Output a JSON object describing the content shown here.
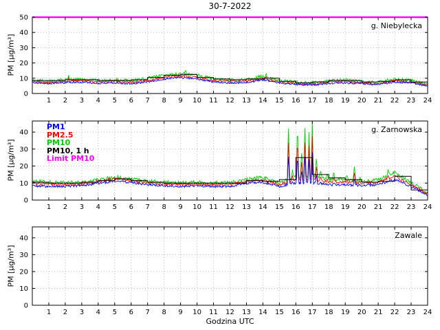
{
  "title": "30-7-2022",
  "xlabel": "Godzina UTC",
  "colors": {
    "pm1": "#0000ff",
    "pm25": "#ff0000",
    "pm10": "#00cc00",
    "pm10_1h": "#000000",
    "limit_pm10": "#ff00ff",
    "grid": "#bbbbbb",
    "frame": "#000000"
  },
  "chart_data": [
    {
      "type": "line",
      "site": "g. Niebylecka",
      "ylabel": "PM [µg/m³]",
      "xlim": [
        0,
        24
      ],
      "ylim": [
        0,
        50
      ],
      "xticks": [
        1,
        2,
        3,
        4,
        5,
        6,
        7,
        8,
        9,
        10,
        11,
        12,
        13,
        14,
        15,
        16,
        17,
        18,
        19,
        20,
        21,
        22,
        23,
        24
      ],
      "yticks": [
        0,
        10,
        20,
        30,
        40,
        50
      ],
      "grid": true,
      "x": [
        0,
        1,
        2,
        3,
        4,
        5,
        6,
        7,
        8,
        9,
        10,
        11,
        12,
        13,
        14,
        15,
        16,
        17,
        18,
        19,
        20,
        21,
        22,
        23,
        24
      ],
      "series": [
        {
          "name": "PM10",
          "color": "#00cc00",
          "noise": 1.0,
          "spike_scale": 1.0,
          "values": [
            9,
            8,
            9,
            9.5,
            8.5,
            9,
            8.5,
            10,
            12,
            13,
            12,
            9.5,
            9,
            9,
            11.5,
            8.5,
            7.5,
            7,
            8.5,
            9,
            8,
            7.5,
            9.5,
            8.5,
            6
          ]
        },
        {
          "name": "PM2.5",
          "color": "#ff0000",
          "noise": 0.7,
          "spike_scale": 0.85,
          "values": [
            8,
            7,
            8,
            8.5,
            7.5,
            8,
            7.5,
            8.5,
            10.5,
            11.5,
            10.5,
            8.5,
            8,
            8,
            10,
            7.5,
            6.5,
            6,
            7.5,
            8,
            7,
            6.5,
            8.5,
            7.5,
            5.5
          ]
        },
        {
          "name": "PM1",
          "color": "#0000ff",
          "noise": 0.6,
          "spike_scale": 0.65,
          "values": [
            7,
            6.5,
            7,
            7.5,
            6.5,
            7,
            6.5,
            7.5,
            9.5,
            10.5,
            9.5,
            7.5,
            7,
            7,
            9,
            7,
            6,
            5.5,
            6.5,
            7,
            6.5,
            6,
            7.5,
            7,
            5
          ]
        }
      ],
      "step_series": {
        "name": "PM10, 1 h",
        "color": "#000000",
        "values": [
          8.5,
          8.5,
          9,
          9,
          8.5,
          8.5,
          9,
          10.5,
          12,
          12.5,
          10.5,
          9.5,
          9,
          9.5,
          10,
          8,
          7,
          7.5,
          8.5,
          8.5,
          7.5,
          8,
          9,
          7.5
        ]
      },
      "limit": {
        "name": "Limit PM10",
        "value": 50,
        "color": "#ff00ff"
      },
      "spikes": [
        {
          "x": 2.2,
          "y": 12
        },
        {
          "x": 9.3,
          "y": 15.5
        },
        {
          "x": 14.2,
          "y": 13
        }
      ]
    },
    {
      "type": "line",
      "site": "g. Zarnowska",
      "ylabel": "PM [µg/m³]",
      "xlim": [
        0,
        24
      ],
      "ylim": [
        0,
        46.5
      ],
      "xticks": [
        1,
        2,
        3,
        4,
        5,
        6,
        7,
        8,
        9,
        10,
        11,
        12,
        13,
        14,
        15,
        16,
        17,
        18,
        19,
        20,
        21,
        22,
        23,
        24
      ],
      "yticks": [
        0,
        10,
        20,
        30,
        40
      ],
      "grid": true,
      "x": [
        0,
        1,
        2,
        3,
        4,
        5,
        6,
        7,
        8,
        9,
        10,
        11,
        12,
        13,
        14,
        15,
        16,
        17,
        18,
        19,
        20,
        21,
        22,
        23,
        24
      ],
      "legend": [
        {
          "label": "PM1",
          "color": "#0000ff"
        },
        {
          "label": "PM2.5",
          "color": "#ff0000"
        },
        {
          "label": "PM10",
          "color": "#00cc00"
        },
        {
          "label": "PM10, 1 h",
          "color": "#000000"
        },
        {
          "label": "Limit PM10",
          "color": "#ff00ff"
        }
      ],
      "series": [
        {
          "name": "PM10",
          "color": "#00cc00",
          "noise": 1.2,
          "spike_scale": 1.0,
          "values": [
            11,
            10.5,
            10,
            10.5,
            12,
            13.5,
            12.5,
            11,
            10.5,
            10,
            10.5,
            10,
            10,
            12,
            13.5,
            10,
            14,
            14,
            12,
            12,
            11,
            12,
            16,
            10,
            4
          ]
        },
        {
          "name": "PM2.5",
          "color": "#ff0000",
          "noise": 0.8,
          "spike_scale": 0.8,
          "values": [
            10,
            9.5,
            9,
            9.5,
            11,
            12.5,
            11.5,
            10,
            9.5,
            9,
            9.5,
            9,
            9,
            11,
            12,
            9,
            12,
            12,
            10.5,
            10.5,
            10,
            10.5,
            14,
            9,
            3.5
          ]
        },
        {
          "name": "PM1",
          "color": "#0000ff",
          "noise": 0.7,
          "spike_scale": 0.6,
          "values": [
            8.5,
            8,
            8,
            8.5,
            10,
            11,
            10.5,
            9,
            8.5,
            8,
            8.5,
            8,
            8,
            10,
            10.5,
            8,
            10,
            10,
            9,
            9,
            8.5,
            9,
            12,
            8,
            3
          ]
        }
      ],
      "step_series": {
        "name": "PM10, 1 h",
        "color": "#000000",
        "values": [
          10.5,
          10,
          10,
          10.5,
          11.5,
          12.5,
          11.5,
          10.5,
          10,
          10,
          10,
          10,
          10,
          11.5,
          11,
          12,
          25,
          15,
          13,
          12,
          10.5,
          11,
          14,
          6
        ]
      },
      "limit": {
        "name": "Limit PM10",
        "value": 50,
        "color": "#ff00ff"
      },
      "spikes": [
        {
          "x": 15.55,
          "y": 47
        },
        {
          "x": 15.8,
          "y": 18
        },
        {
          "x": 16.1,
          "y": 47
        },
        {
          "x": 16.35,
          "y": 30
        },
        {
          "x": 16.55,
          "y": 47
        },
        {
          "x": 16.8,
          "y": 40
        },
        {
          "x": 17.0,
          "y": 47
        },
        {
          "x": 17.25,
          "y": 26
        },
        {
          "x": 17.5,
          "y": 18
        },
        {
          "x": 17.9,
          "y": 16
        },
        {
          "x": 18.3,
          "y": 17
        },
        {
          "x": 18.7,
          "y": 14
        },
        {
          "x": 19.1,
          "y": 15
        },
        {
          "x": 19.55,
          "y": 21
        },
        {
          "x": 19.9,
          "y": 14
        },
        {
          "x": 21.6,
          "y": 18
        }
      ]
    },
    {
      "type": "line",
      "site": "Zawale",
      "ylabel": "PM [µg/m³]",
      "xlim": [
        0,
        24
      ],
      "ylim": [
        0,
        46.5
      ],
      "xticks": [
        1,
        2,
        3,
        4,
        5,
        6,
        7,
        8,
        9,
        10,
        11,
        12,
        13,
        14,
        15,
        16,
        17,
        18,
        19,
        20,
        21,
        22,
        23,
        24
      ],
      "yticks": [
        0,
        10,
        20,
        30,
        40
      ],
      "grid": true,
      "x": [
        0,
        1,
        2,
        3,
        4,
        5,
        6,
        7,
        8,
        9,
        10,
        11,
        12,
        13,
        14,
        15,
        16,
        17,
        18,
        19,
        20,
        21,
        22,
        23,
        24
      ],
      "series": [],
      "step_series": null,
      "limit": {
        "name": "Limit PM10",
        "value": 50,
        "color": "#ff00ff"
      },
      "spikes": []
    }
  ]
}
